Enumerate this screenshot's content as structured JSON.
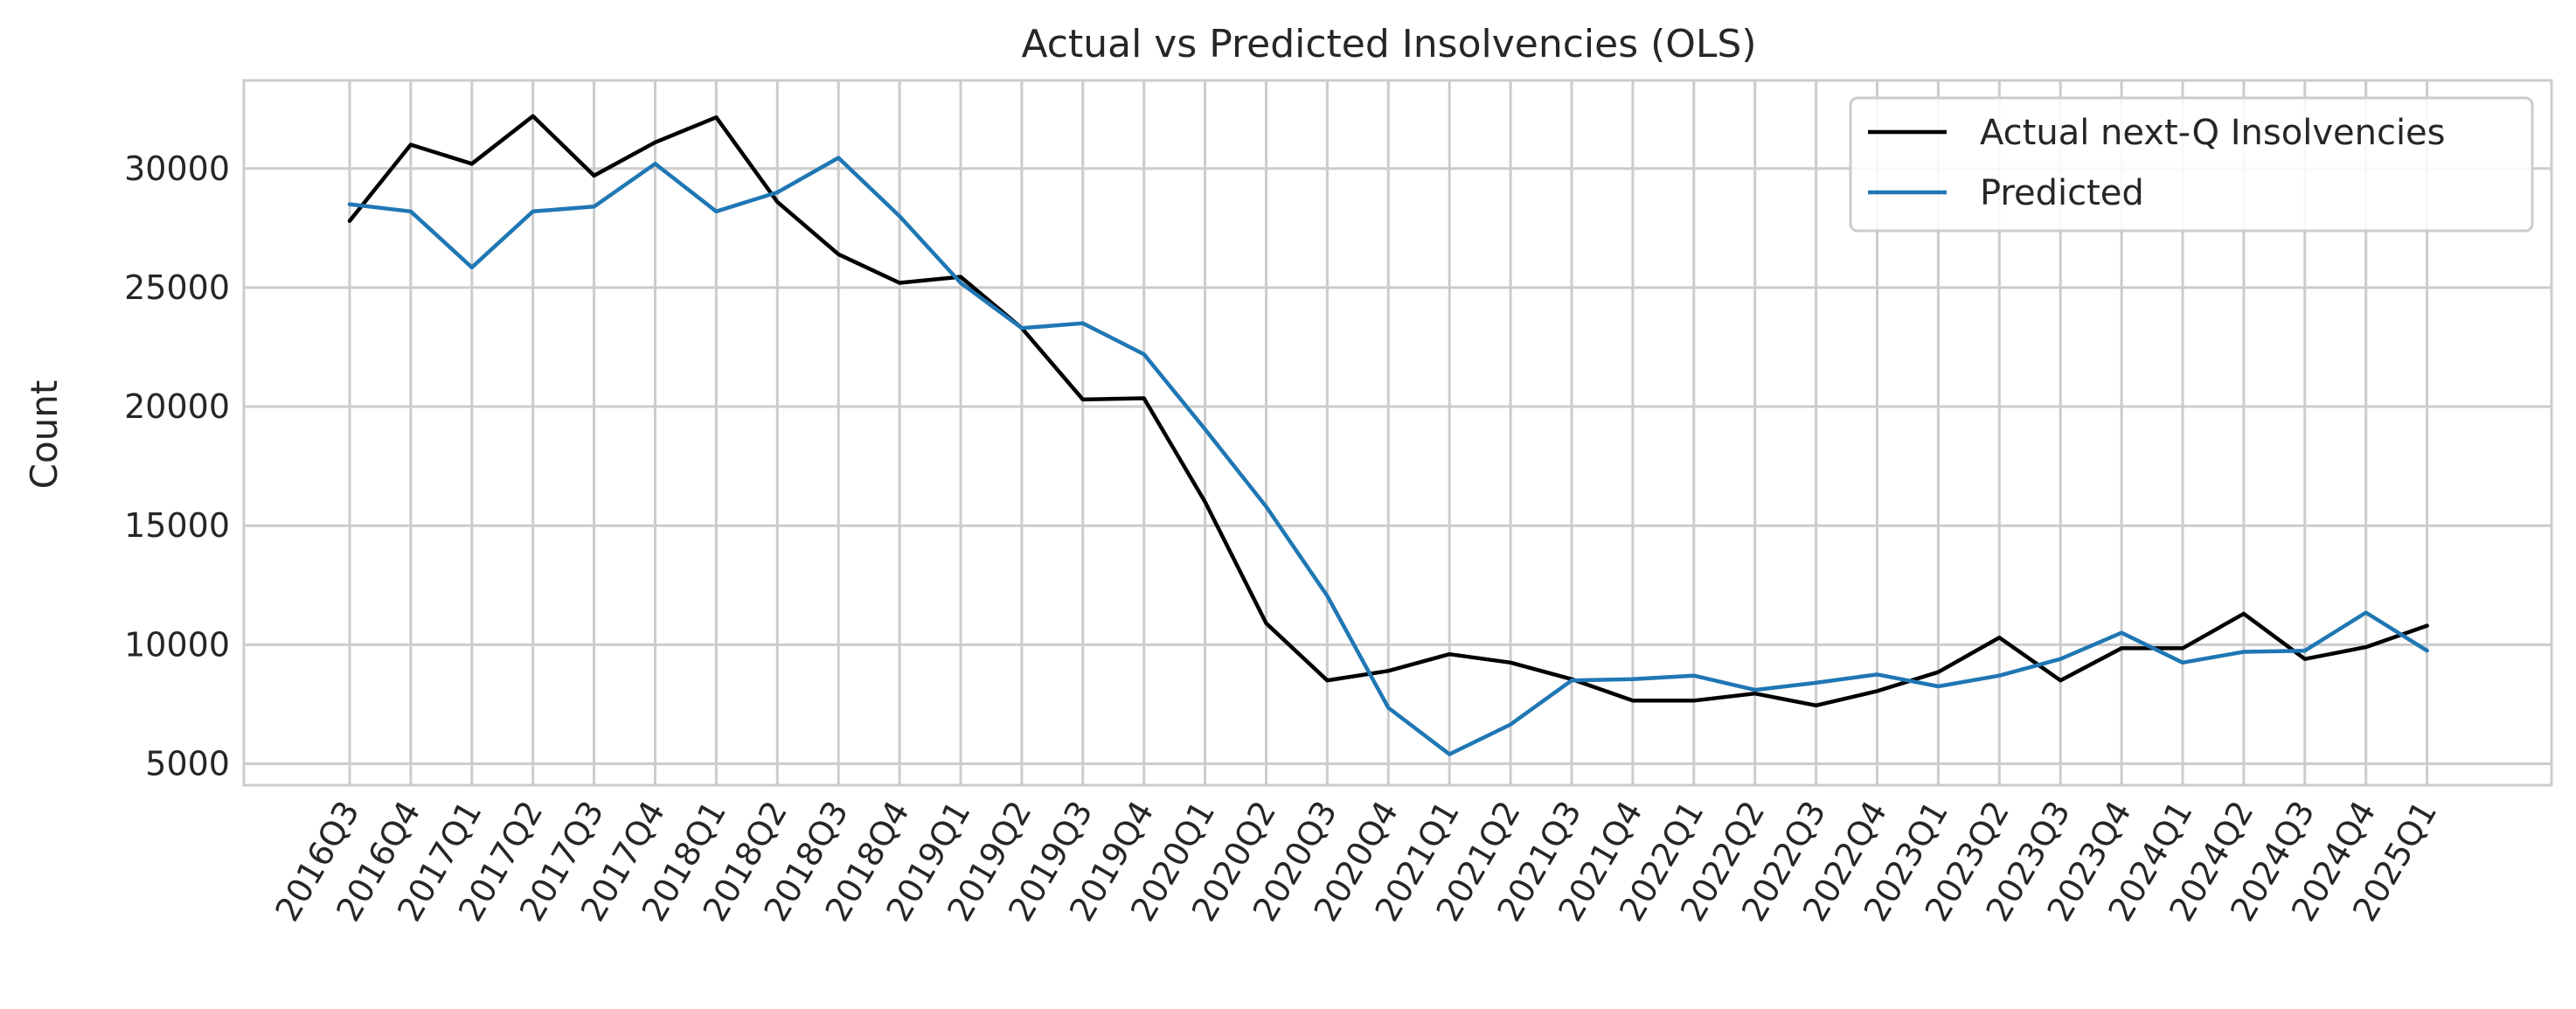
{
  "chart_data": {
    "type": "line",
    "title": "Actual vs Predicted Insolvencies (OLS)",
    "xlabel": "",
    "ylabel": "Count",
    "ylim": [
      4100,
      33700
    ],
    "yticks": [
      5000,
      10000,
      15000,
      20000,
      25000,
      30000
    ],
    "grid": true,
    "legend_position": "top-right",
    "categories": [
      "2016Q3",
      "2016Q4",
      "2017Q1",
      "2017Q2",
      "2017Q3",
      "2017Q4",
      "2018Q1",
      "2018Q2",
      "2018Q3",
      "2018Q4",
      "2019Q1",
      "2019Q2",
      "2019Q3",
      "2019Q4",
      "2020Q1",
      "2020Q2",
      "2020Q3",
      "2020Q4",
      "2021Q1",
      "2021Q2",
      "2021Q3",
      "2021Q4",
      "2022Q1",
      "2022Q2",
      "2022Q3",
      "2022Q4",
      "2023Q1",
      "2023Q2",
      "2023Q3",
      "2023Q4",
      "2024Q1",
      "2024Q2",
      "2024Q3",
      "2024Q4",
      "2025Q1"
    ],
    "series": [
      {
        "name": "Actual next-Q Insolvencies",
        "color": "#000000",
        "values": [
          27800,
          31000,
          30200,
          32200,
          29700,
          31100,
          32150,
          28600,
          26400,
          25200,
          25450,
          23300,
          20300,
          20350,
          16000,
          10900,
          8500,
          8900,
          9600,
          9250,
          8550,
          7650,
          7650,
          7950,
          7450,
          8050,
          8850,
          10300,
          8500,
          9850,
          9850,
          11300,
          9400,
          9900,
          10800
        ]
      },
      {
        "name": "Predicted",
        "color": "#1f77b4",
        "values": [
          28500,
          28200,
          25850,
          28200,
          28400,
          30200,
          28200,
          29000,
          30450,
          28000,
          25200,
          23300,
          23500,
          22200,
          19050,
          15800,
          12050,
          7350,
          5400,
          6650,
          8500,
          8550,
          8700,
          8100,
          8400,
          8750,
          8250,
          8700,
          9400,
          10500,
          9250,
          9700,
          9750,
          11350,
          9750
        ]
      }
    ]
  }
}
